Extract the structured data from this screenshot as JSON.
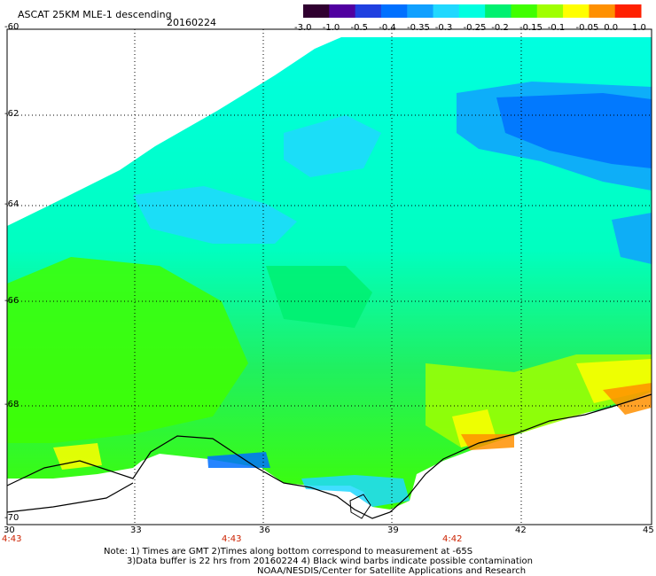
{
  "header": {
    "title": "ASCAT 25KM MLE-1 descending",
    "date": "20160224"
  },
  "colorbar": {
    "labels": [
      "-3.0",
      "-1.0",
      "-0.5",
      "-0.4",
      "-0.35",
      "-0.3",
      "-0.25",
      "-0.2",
      "-0.15",
      "-0.1",
      "-0.05",
      "0.0",
      "1.0"
    ],
    "colors": [
      "#300030",
      "#5000a0",
      "#2040e0",
      "#0070ff",
      "#10a0ff",
      "#20d8ff",
      "#00ffe0",
      "#00f070",
      "#40ff00",
      "#a0ff00",
      "#ffff00",
      "#ff9000",
      "#ff2000"
    ]
  },
  "axes": {
    "lat_labels": [
      "-60",
      "-62",
      "-64",
      "-66",
      "-68",
      "-70"
    ],
    "lon_labels": [
      "30",
      "33",
      "36",
      "39",
      "42",
      "45"
    ]
  },
  "time_labels": [
    "4:43",
    "4:43",
    "4:42"
  ],
  "notes": {
    "line1": "Note: 1) Times are GMT 2)Times along bottom correspond to measurement at -65S",
    "line2": "3)Data buffer is 22 hrs from 20160224 4) Black wind barbs indicate possible contamination",
    "line3": "NOAA/NESDIS/Center for Satellite Applications and Research"
  }
}
